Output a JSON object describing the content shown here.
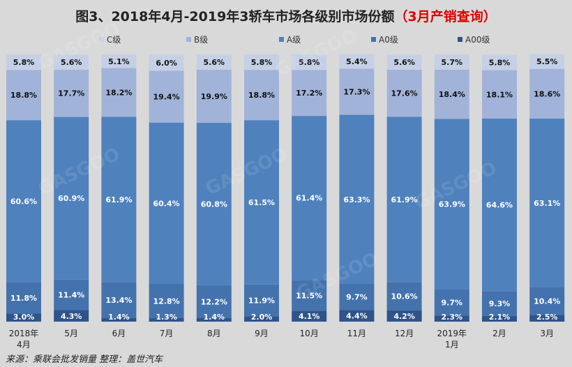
{
  "title": "图3、2018年4月-2019年3轿车市场各级别市场份额",
  "title_highlight": "（3月产销查询）",
  "colors": {
    "title": "#222222",
    "highlight": "#e00000",
    "background": "#d9d9d9",
    "C级": "#c5d0e6",
    "B级": "#a2b3d9",
    "A级": "#4f81bd",
    "A0级": "#4472ad",
    "A00级": "#2e5489"
  },
  "source": "来源：乘联会批发销量   整理：盖世汽车",
  "watermark": "GASGOO",
  "chart_data": {
    "type": "bar",
    "stacked": true,
    "percent": true,
    "ylim": [
      0,
      100
    ],
    "categories": [
      "2018年4月",
      "5月",
      "6月",
      "7月",
      "8月",
      "9月",
      "10月",
      "11月",
      "12月",
      "2019年1月",
      "2月",
      "3月"
    ],
    "category_lines": [
      [
        "2018年",
        "4月"
      ],
      [
        "5月"
      ],
      [
        "6月"
      ],
      [
        "7月"
      ],
      [
        "8月"
      ],
      [
        "9月"
      ],
      [
        "10月"
      ],
      [
        "11月"
      ],
      [
        "12月"
      ],
      [
        "2019年",
        "1月"
      ],
      [
        "2月"
      ],
      [
        "3月"
      ]
    ],
    "legend_position": "top",
    "series": [
      {
        "name": "A00级",
        "values": [
          3.0,
          4.3,
          1.4,
          1.3,
          1.4,
          2.0,
          4.1,
          4.4,
          4.2,
          2.3,
          2.1,
          2.5
        ]
      },
      {
        "name": "A0级",
        "values": [
          11.8,
          11.4,
          13.4,
          12.8,
          12.2,
          11.9,
          11.5,
          9.7,
          10.6,
          9.7,
          9.3,
          10.4
        ]
      },
      {
        "name": "A级",
        "values": [
          60.6,
          60.9,
          61.9,
          60.4,
          60.8,
          61.5,
          61.4,
          63.3,
          61.9,
          63.9,
          64.6,
          63.1
        ]
      },
      {
        "name": "B级",
        "values": [
          18.8,
          17.7,
          18.2,
          19.4,
          19.9,
          18.8,
          17.2,
          17.3,
          17.6,
          18.4,
          18.1,
          18.6
        ]
      },
      {
        "name": "C级",
        "values": [
          5.8,
          5.6,
          5.1,
          6.0,
          5.6,
          5.8,
          5.8,
          5.4,
          5.6,
          5.7,
          5.8,
          5.5
        ]
      }
    ],
    "legend_order": [
      "C级",
      "B级",
      "A级",
      "A0级",
      "A00级"
    ]
  }
}
